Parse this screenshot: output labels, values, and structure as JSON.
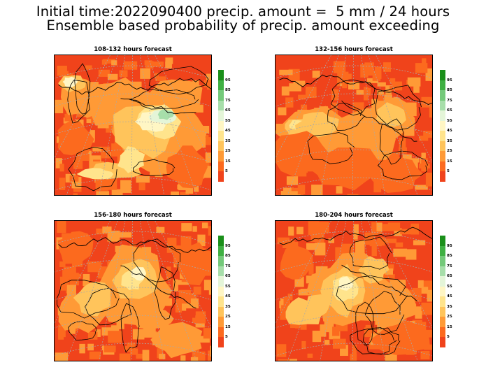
{
  "header": {
    "line1": "Initial time:2022090400 precip. amount =  5 mm / 24 hours",
    "line2": "Ensemble based probability of precip. amount exceeding"
  },
  "colorbar": {
    "labels": [
      "95",
      "85",
      "75",
      "65",
      "55",
      "45",
      "35",
      "25",
      "15",
      "5"
    ],
    "colors": [
      "#1a8f1a",
      "#3fb043",
      "#74c97a",
      "#a7deaa",
      "#e4f5d8",
      "#fff6c4",
      "#ffe48c",
      "#ffc45b",
      "#ff9a36",
      "#fc6a1e",
      "#f0431b"
    ]
  },
  "panels": [
    {
      "title": "108-132 hours forecast"
    },
    {
      "title": "132-156 hours forecast"
    },
    {
      "title": "156-180 hours forecast"
    },
    {
      "title": "180-204 hours forecast"
    }
  ]
}
